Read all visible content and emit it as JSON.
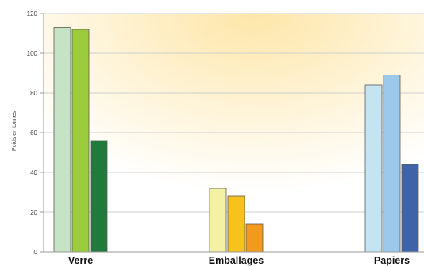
{
  "chart_data": {
    "type": "bar",
    "categories": [
      "Verre",
      "Emballages",
      "Papiers"
    ],
    "series": [
      {
        "values": [
          113,
          32,
          84
        ]
      },
      {
        "values": [
          112,
          28,
          89
        ]
      },
      {
        "values": [
          56,
          14,
          44
        ]
      }
    ],
    "ylabel": "Poids en tonnes",
    "xlabel": "",
    "ylim": [
      0,
      120
    ],
    "yticks": [
      0,
      20,
      40,
      60,
      80,
      100,
      120
    ],
    "grid": true,
    "colors": [
      [
        "#c7e3c5",
        "#9ccc3c",
        "#1f7a3c"
      ],
      [
        "#f4f0a4",
        "#f8c21c",
        "#f39a1c"
      ],
      [
        "#c4e4f2",
        "#9cc8ec",
        "#3f63a8"
      ]
    ],
    "background_gradient": [
      "#fde6a8",
      "#ffffff"
    ]
  }
}
